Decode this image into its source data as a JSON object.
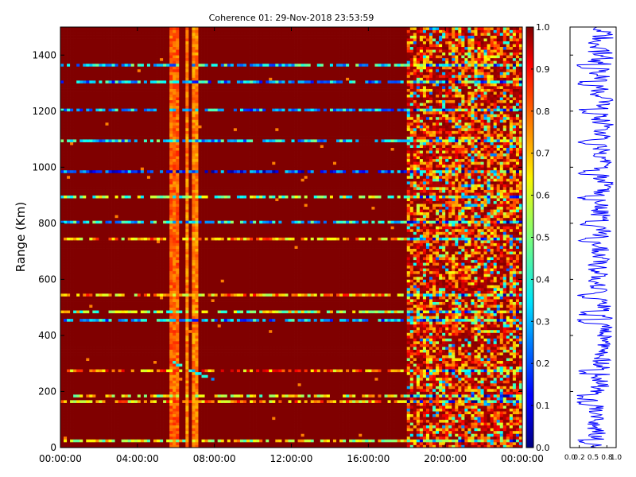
{
  "chart_data": {
    "type": "heatmap",
    "title": "Coherence 01: 29-Nov-2018 23:53:59",
    "ylabel": "Range (Km)",
    "xlabel": "",
    "x_ticks": [
      "00:00:00",
      "04:00:00",
      "08:00:00",
      "12:00:00",
      "16:00:00",
      "20:00:00",
      "00:00:00"
    ],
    "x_tick_hours": [
      0,
      4,
      8,
      12,
      16,
      20,
      24
    ],
    "xlim_hours": [
      0,
      24
    ],
    "y_ticks": [
      0,
      200,
      400,
      600,
      800,
      1000,
      1200,
      1400
    ],
    "ylim": [
      0,
      1500
    ],
    "colorbar": {
      "range": [
        0.0,
        1.0
      ],
      "ticks": [
        "0.0",
        "0.1",
        "0.2",
        "0.3",
        "0.4",
        "0.5",
        "0.6",
        "0.7",
        "0.8",
        "0.9",
        "1.0"
      ],
      "colormap": "jet"
    },
    "background_value": 1.0,
    "time_bands": [
      {
        "start_h": 0.65,
        "end_h": 0.75,
        "value": 0.85
      },
      {
        "start_h": 5.75,
        "end_h": 6.1,
        "value": 0.78
      },
      {
        "start_h": 6.55,
        "end_h": 6.65,
        "value": 0.75
      },
      {
        "start_h": 6.8,
        "end_h": 6.9,
        "value": 0.75
      },
      {
        "start_h": 6.9,
        "end_h": 7.15,
        "value": 0.75
      },
      {
        "start_h": 18.0,
        "end_h": 24.0,
        "value": 0.7
      }
    ],
    "range_bands_km": [
      {
        "range": 1365,
        "value": 0.35
      },
      {
        "range": 1300,
        "value": 0.3
      },
      {
        "range": 1200,
        "value": 0.3
      },
      {
        "range": 1095,
        "value": 0.35
      },
      {
        "range": 980,
        "value": 0.2
      },
      {
        "range": 895,
        "value": 0.5
      },
      {
        "range": 805,
        "value": 0.35
      },
      {
        "range": 740,
        "value": 0.7
      },
      {
        "range": 540,
        "value": 0.7
      },
      {
        "range": 485,
        "value": 0.55
      },
      {
        "range": 455,
        "value": 0.3
      },
      {
        "range": 270,
        "value": 0.75
      },
      {
        "range": 185,
        "value": 0.6
      },
      {
        "range": 160,
        "value": 0.7
      },
      {
        "range": 25,
        "value": 0.6
      }
    ],
    "trace": {
      "start_h": 5.6,
      "end_h": 7.9,
      "start_km": 310,
      "end_km": 240,
      "value": 0.25
    },
    "side_panel": {
      "type": "line",
      "x_ticks": [
        "0.0",
        "0.2",
        "0.5",
        "0.8",
        "1.0"
      ],
      "xlim": [
        0,
        1
      ],
      "ylim": [
        0,
        1500
      ],
      "color": "#0000ff",
      "profile": [
        {
          "range": 0,
          "min": 0.35,
          "max": 0.75
        },
        {
          "range": 300,
          "min": 0.45,
          "max": 0.9
        },
        {
          "range": 450,
          "min": 0.65,
          "max": 0.95
        },
        {
          "range": 600,
          "min": 0.35,
          "max": 0.85
        },
        {
          "range": 1000,
          "min": 0.5,
          "max": 0.95
        },
        {
          "range": 1500,
          "min": 0.35,
          "max": 0.95
        }
      ]
    }
  }
}
